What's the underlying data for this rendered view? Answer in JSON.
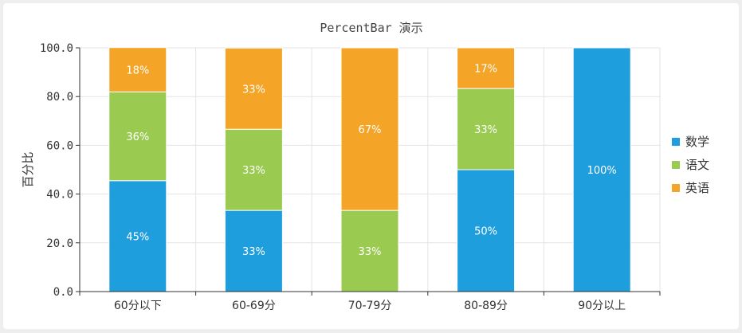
{
  "chart_data": {
    "type": "bar",
    "stacked": true,
    "title": "PercentBar 演示",
    "ylabel": "百分比",
    "xlabel": "",
    "ylim": [
      0,
      100
    ],
    "yticks": [
      "0.0",
      "20.0",
      "40.0",
      "60.0",
      "80.0",
      "100.0"
    ],
    "categories": [
      "60分以下",
      "60-69分",
      "70-79分",
      "80-89分",
      "90分以上"
    ],
    "series": [
      {
        "name": "数学",
        "color": "#1f9ede",
        "values": [
          45.5,
          33.3,
          0,
          50,
          100
        ],
        "labels": [
          "45%",
          "33%",
          "",
          "50%",
          "100%"
        ]
      },
      {
        "name": "语文",
        "color": "#9aca50",
        "values": [
          36.4,
          33.3,
          33.3,
          33.3,
          0
        ],
        "labels": [
          "36%",
          "33%",
          "33%",
          "33%",
          ""
        ]
      },
      {
        "name": "英语",
        "color": "#f4a426",
        "values": [
          18.2,
          33.3,
          66.7,
          16.7,
          0
        ],
        "labels": [
          "18%",
          "33%",
          "67%",
          "17%",
          ""
        ]
      }
    ],
    "grid": true,
    "legend_position": "right"
  }
}
